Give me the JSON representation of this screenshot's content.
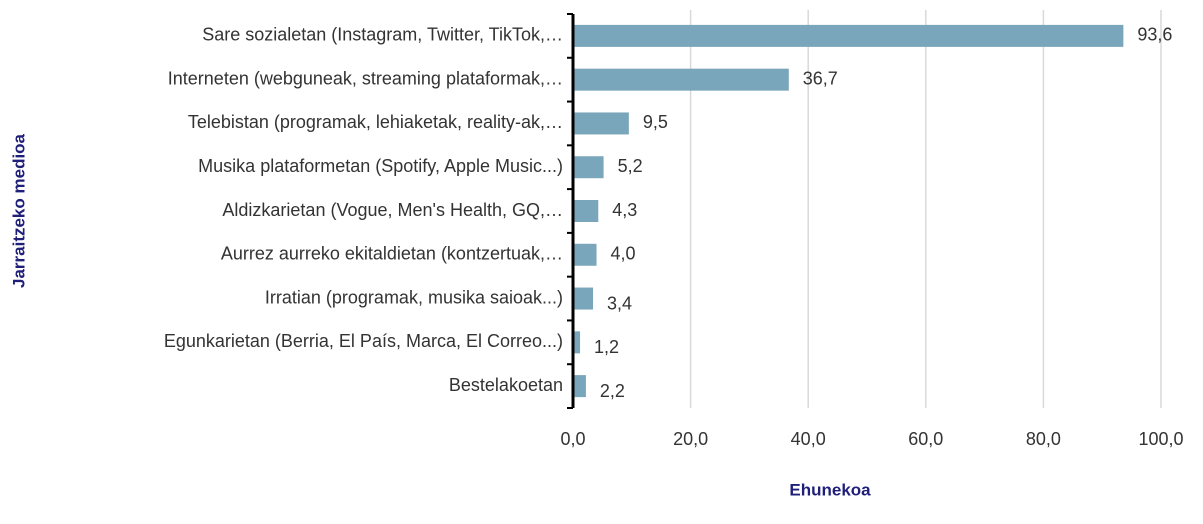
{
  "chart_data": {
    "type": "bar",
    "orientation": "horizontal",
    "x_label": "Ehunekoa",
    "y_label": "Jarraitzeko medioa",
    "categories": [
      "Sare sozialetan (Instagram, Twitter, TikTok,…",
      "Interneten (webguneak, streaming plataformak,…",
      "Telebistan (programak, lehiaketak, reality-ak,…",
      "Musika plataformetan (Spotify, Apple Music...)",
      "Aldizkarietan (Vogue, Men's Health, GQ,…",
      "Aurrez aurreko ekitaldietan (kontzertuak,…",
      "Irratian (programak, musika saioak...)",
      "Egunkarietan (Berria, El País, Marca, El Correo...)",
      "Bestelakoetan"
    ],
    "values": [
      93.6,
      36.7,
      9.5,
      5.2,
      4.3,
      4.0,
      3.4,
      1.2,
      2.2
    ],
    "value_labels": [
      "93,6",
      "36,7",
      "9,5",
      "5,2",
      "4,3",
      "4,0",
      "3,4",
      "1,2",
      "2,2"
    ],
    "color": "#7aa6bb",
    "xlim": [
      0,
      100
    ],
    "xticks": [
      {
        "value": 0,
        "label": "0,0"
      },
      {
        "value": 20,
        "label": "20,0"
      },
      {
        "value": 40,
        "label": "40,0"
      },
      {
        "value": 60,
        "label": "60,0"
      },
      {
        "value": 80,
        "label": "80,0"
      },
      {
        "value": 100,
        "label": "100,0"
      }
    ],
    "grid": true
  }
}
